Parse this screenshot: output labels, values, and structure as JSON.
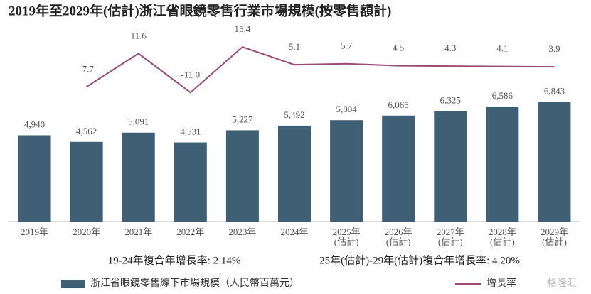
{
  "chart_data": {
    "type": "bar",
    "title": "2019年至2029年(估計)浙江省眼鏡零售行業市場規模(按零售額計)",
    "categories": [
      "2019年",
      "2020年",
      "2021年",
      "2022年",
      "2023年",
      "2024年",
      "2025年\n(估計)",
      "2026年\n(估計)",
      "2027年\n(估計)",
      "2028年\n(估計)",
      "2029年\n(估計)"
    ],
    "series": [
      {
        "name": "浙江省眼鏡零售線下市場規模（人民幣百萬元）",
        "type": "bar",
        "color": "#3e5f74",
        "values": [
          4940,
          4562,
          5091,
          4531,
          5227,
          5492,
          5804,
          6065,
          6325,
          6586,
          6843
        ],
        "value_labels": [
          "4,940",
          "4,562",
          "5,091",
          "4,531",
          "5,227",
          "5,492",
          "5,804",
          "6,065",
          "6,325",
          "6,586",
          "6,843"
        ]
      },
      {
        "name": "增長率",
        "type": "line",
        "axis": "y2",
        "color": "#9c4a7a",
        "values": [
          null,
          -7.7,
          11.6,
          -11.0,
          15.4,
          5.1,
          5.7,
          4.5,
          4.3,
          4.1,
          3.9
        ],
        "value_labels": [
          null,
          "-7.7",
          "11.6",
          "-11.0",
          "15.4",
          "5.1",
          "5.7",
          "4.5",
          "4.3",
          "4.1",
          "3.9"
        ]
      }
    ],
    "ylim": [
      0,
      10000
    ],
    "y2lim": [
      -15,
      20
    ],
    "annotations": [
      "19-24年複合年增長率: 2.14%",
      "25年(估計)-29年(估計)複合年增長率: 4.20%"
    ],
    "legend": "bottom",
    "watermark": "格隆汇"
  }
}
